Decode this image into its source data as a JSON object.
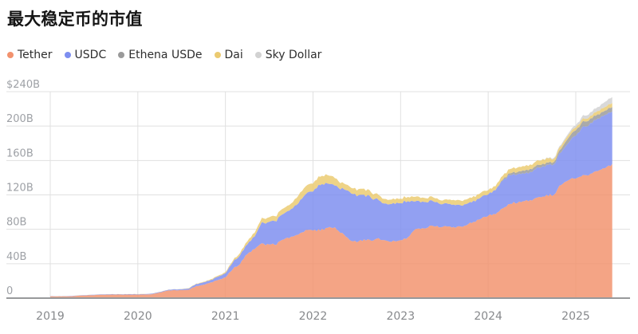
{
  "page": {
    "title": "最大稳定币的市值"
  },
  "chart_data": {
    "type": "area",
    "stacked": true,
    "title": "最大稳定币的市值",
    "unit": "USD billions",
    "x_start": "2019-01",
    "x_end": "2025-06",
    "x_interval": "monthly",
    "x_tick_labels": [
      "2019",
      "2020",
      "2021",
      "2022",
      "2023",
      "2024",
      "2025"
    ],
    "y_tick_labels": [
      "$240B",
      "200B",
      "160B",
      "120B",
      "80B",
      "40B",
      "0"
    ],
    "y_tick_values": [
      240,
      200,
      160,
      120,
      80,
      40,
      0
    ],
    "ylim": [
      0,
      240
    ],
    "grid": true,
    "legend_position": "top-left",
    "series": [
      {
        "id": "tether",
        "name": "Tether",
        "color": "#F2926E",
        "values": [
          2.0,
          2.0,
          2.0,
          2.2,
          2.9,
          3.2,
          3.6,
          4.0,
          4.0,
          4.1,
          4.1,
          4.1,
          4.1,
          4.3,
          4.6,
          6.4,
          8.8,
          9.2,
          9.2,
          10.0,
          13.9,
          15.7,
          17.9,
          20.9,
          24.4,
          34.0,
          40.1,
          51.8,
          58.1,
          62.7,
          61.8,
          62.8,
          68.0,
          70.5,
          73.2,
          78.3,
          78.4,
          79.5,
          81.2,
          82.8,
          75.3,
          67.9,
          65.9,
          67.5,
          67.9,
          69.1,
          65.9,
          66.2,
          67.6,
          70.9,
          79.4,
          81.5,
          83.1,
          83.4,
          83.8,
          82.9,
          83.2,
          84.4,
          88.9,
          91.7,
          96.1,
          98.5,
          104.4,
          110.5,
          111.5,
          112.6,
          114.4,
          117.2,
          119.2,
          120.2,
          132.7,
          137.9,
          139.4,
          142.1,
          143.9,
          148.6,
          151.5,
          155.4
        ]
      },
      {
        "id": "usdc",
        "name": "USDC",
        "color": "#7D8EF0",
        "values": [
          0.3,
          0.25,
          0.25,
          0.3,
          0.35,
          0.35,
          0.4,
          0.45,
          0.5,
          0.45,
          0.45,
          0.5,
          0.5,
          0.45,
          0.7,
          0.7,
          0.7,
          1.0,
          1.1,
          1.4,
          2.4,
          2.8,
          2.9,
          3.9,
          4.7,
          8.0,
          10.0,
          11.5,
          14.5,
          24.1,
          26.0,
          27.5,
          29.5,
          32.3,
          36.4,
          42.4,
          45.6,
          52.4,
          51.9,
          49.3,
          52.3,
          55.6,
          54.6,
          52.1,
          49.5,
          44.4,
          43.2,
          44.3,
          43.6,
          42.3,
          33.0,
          30.5,
          29.1,
          27.9,
          26.6,
          26.0,
          25.2,
          24.6,
          24.2,
          24.4,
          25.4,
          28.0,
          32.4,
          33.4,
          32.8,
          32.4,
          33.6,
          34.6,
          35.8,
          34.7,
          38.9,
          42.4,
          50.0,
          56.0,
          59.5,
          61.0,
          61.0,
          61.5
        ]
      },
      {
        "id": "ethena-usde",
        "name": "Ethena USDe",
        "color": "#9A9A9A",
        "values": [
          0,
          0,
          0,
          0,
          0,
          0,
          0,
          0,
          0,
          0,
          0,
          0,
          0,
          0,
          0,
          0,
          0,
          0,
          0,
          0,
          0,
          0,
          0,
          0,
          0,
          0,
          0,
          0,
          0,
          0,
          0,
          0,
          0,
          0,
          0,
          0,
          0,
          0,
          0,
          0,
          0,
          0,
          0,
          0,
          0,
          0,
          0,
          0,
          0,
          0,
          0,
          0,
          0,
          0,
          0,
          0,
          0,
          0,
          0,
          0,
          0,
          0.3,
          1.3,
          2.3,
          2.6,
          3.6,
          3.4,
          3.1,
          2.6,
          2.7,
          3.9,
          5.9,
          6.0,
          6.2,
          5.4,
          4.8,
          5.0,
          5.3
        ]
      },
      {
        "id": "dai",
        "name": "Dai",
        "color": "#EBCA70",
        "values": [
          0.08,
          0.08,
          0.09,
          0.09,
          0.08,
          0.08,
          0.08,
          0.08,
          0.08,
          0.09,
          0.1,
          0.1,
          0.12,
          0.13,
          0.1,
          0.1,
          0.12,
          0.13,
          0.2,
          0.4,
          0.45,
          0.6,
          0.9,
          1.1,
          1.3,
          1.8,
          2.7,
          3.5,
          4.4,
          5.0,
          5.5,
          5.8,
          6.3,
          6.5,
          8.8,
          9.0,
          9.3,
          9.9,
          9.8,
          8.9,
          6.6,
          6.3,
          6.9,
          7.0,
          6.4,
          5.8,
          5.2,
          5.1,
          5.1,
          5.2,
          5.3,
          4.8,
          4.6,
          4.4,
          4.3,
          5.3,
          5.5,
          5.3,
          5.3,
          5.3,
          4.9,
          4.6,
          4.4,
          5.0,
          5.2,
          5.1,
          5.1,
          5.1,
          5.3,
          3.7,
          3.5,
          3.3,
          3.2,
          3.2,
          3.2,
          4.1,
          4.4,
          4.5
        ]
      },
      {
        "id": "sky-dollar",
        "name": "Sky Dollar",
        "color": "#D2D2D2",
        "values": [
          0,
          0,
          0,
          0,
          0,
          0,
          0,
          0,
          0,
          0,
          0,
          0,
          0,
          0,
          0,
          0,
          0,
          0,
          0,
          0,
          0,
          0,
          0,
          0,
          0,
          0,
          0,
          0,
          0,
          0,
          0,
          0,
          0,
          0,
          0,
          0,
          0,
          0,
          0,
          0,
          0,
          0,
          0,
          0,
          0,
          0,
          0,
          0,
          0,
          0,
          0,
          0,
          0,
          0,
          0,
          0,
          0,
          0,
          0,
          0,
          0,
          0,
          0,
          0,
          0,
          0,
          0,
          0,
          0.4,
          1.0,
          1.5,
          2.0,
          2.6,
          3.5,
          4.2,
          4.5,
          6.0,
          7.0
        ]
      }
    ]
  }
}
